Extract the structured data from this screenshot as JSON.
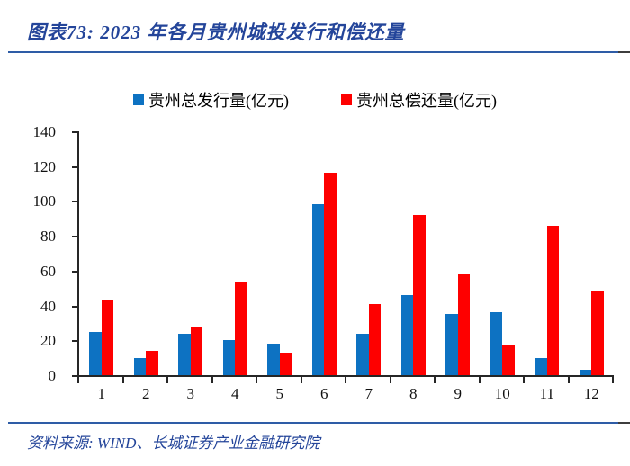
{
  "header": {
    "title": "图表73: 2023 年各月贵州城投发行和偿还量"
  },
  "footer": {
    "source": "资料来源: WIND、长城证券产业金融研究院"
  },
  "colors": {
    "title_navy": "#24459a",
    "rule_blue": "#2e5ca6",
    "issuance_blue": "#0d72c2",
    "repayment_red": "#fe0000",
    "axis_black": "#262626"
  },
  "chart_data": {
    "type": "bar",
    "title": "图表73: 2023 年各月贵州城投发行和偿还量",
    "categories": [
      "1",
      "2",
      "3",
      "4",
      "5",
      "6",
      "7",
      "8",
      "9",
      "10",
      "11",
      "12"
    ],
    "series": [
      {
        "name": "贵州总发行量(亿元)",
        "color": "#0d72c2",
        "values": [
          25,
          10,
          24,
          20,
          18,
          98,
          24,
          46,
          35,
          36,
          10,
          3
        ]
      },
      {
        "name": "贵州总偿还量(亿元)",
        "color": "#fe0000",
        "values": [
          43,
          14,
          28,
          53,
          13,
          116,
          41,
          92,
          58,
          17,
          86,
          48
        ]
      }
    ],
    "xlabel": "",
    "ylabel": "",
    "ylim": [
      0,
      140
    ],
    "ytick_step": 20,
    "grid": false,
    "legend_position": "top"
  }
}
